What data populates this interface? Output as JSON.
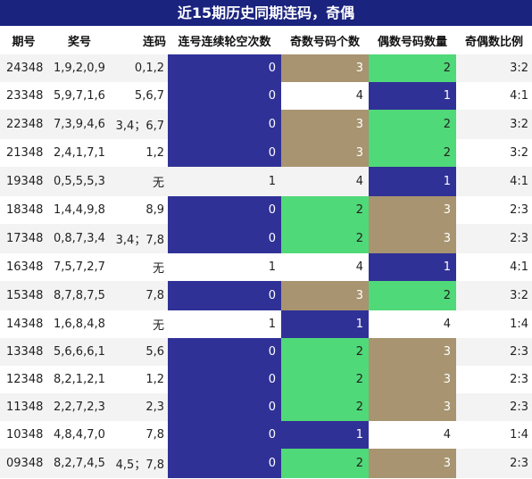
{
  "title": "近15期历史同期连码，奇偶",
  "headers": [
    "期号",
    "奖号",
    "连码",
    "连号连续轮空次数",
    "奇数号码个数",
    "偶数号码数量",
    "奇偶数比例"
  ],
  "colors": {
    "blue": "#303197",
    "tan": "#a89470",
    "green": "#50d978",
    "header": "#1a237e"
  },
  "rows": [
    {
      "period": "24348",
      "numbers": "1,9,2,0,9",
      "lian": "0,1,2",
      "miss": "0",
      "odd": "3",
      "even": "2",
      "ratio": "3:2",
      "c": [
        "blue",
        "tan",
        "green"
      ]
    },
    {
      "period": "23348",
      "numbers": "5,9,7,1,6",
      "lian": "5,6,7",
      "miss": "0",
      "odd": "4",
      "even": "1",
      "ratio": "4:1",
      "c": [
        "blue",
        "white",
        "blue"
      ]
    },
    {
      "period": "22348",
      "numbers": "7,3,9,4,6",
      "lian": "3,4；6,7",
      "miss": "0",
      "odd": "3",
      "even": "2",
      "ratio": "3:2",
      "c": [
        "blue",
        "tan",
        "green"
      ]
    },
    {
      "period": "21348",
      "numbers": "2,4,1,7,1",
      "lian": "1,2",
      "miss": "0",
      "odd": "3",
      "even": "2",
      "ratio": "3:2",
      "c": [
        "blue",
        "tan",
        "green"
      ]
    },
    {
      "period": "19348",
      "numbers": "0,5,5,5,3",
      "lian": "无",
      "miss": "1",
      "odd": "4",
      "even": "1",
      "ratio": "4:1",
      "c": [
        "white",
        "white",
        "blue"
      ]
    },
    {
      "period": "18348",
      "numbers": "1,4,4,9,8",
      "lian": "8,9",
      "miss": "0",
      "odd": "2",
      "even": "3",
      "ratio": "2:3",
      "c": [
        "blue",
        "green",
        "tan"
      ]
    },
    {
      "period": "17348",
      "numbers": "0,8,7,3,4",
      "lian": "3,4；7,8",
      "miss": "0",
      "odd": "2",
      "even": "3",
      "ratio": "2:3",
      "c": [
        "blue",
        "green",
        "tan"
      ]
    },
    {
      "period": "16348",
      "numbers": "7,5,7,2,7",
      "lian": "无",
      "miss": "1",
      "odd": "4",
      "even": "1",
      "ratio": "4:1",
      "c": [
        "white",
        "white",
        "blue"
      ]
    },
    {
      "period": "15348",
      "numbers": "8,7,8,7,5",
      "lian": "7,8",
      "miss": "0",
      "odd": "3",
      "even": "2",
      "ratio": "3:2",
      "c": [
        "blue",
        "tan",
        "green"
      ]
    },
    {
      "period": "14348",
      "numbers": "1,6,8,4,8",
      "lian": "无",
      "miss": "1",
      "odd": "1",
      "even": "4",
      "ratio": "1:4",
      "c": [
        "white",
        "blue",
        "white"
      ]
    },
    {
      "period": "13348",
      "numbers": "5,6,6,6,1",
      "lian": "5,6",
      "miss": "0",
      "odd": "2",
      "even": "3",
      "ratio": "2:3",
      "c": [
        "blue",
        "green",
        "tan"
      ]
    },
    {
      "period": "12348",
      "numbers": "8,2,1,2,1",
      "lian": "1,2",
      "miss": "0",
      "odd": "2",
      "even": "3",
      "ratio": "2:3",
      "c": [
        "blue",
        "green",
        "tan"
      ]
    },
    {
      "period": "11348",
      "numbers": "2,2,7,2,3",
      "lian": "2,3",
      "miss": "0",
      "odd": "2",
      "even": "3",
      "ratio": "2:3",
      "c": [
        "blue",
        "green",
        "tan"
      ]
    },
    {
      "period": "10348",
      "numbers": "4,8,4,7,0",
      "lian": "7,8",
      "miss": "0",
      "odd": "1",
      "even": "4",
      "ratio": "1:4",
      "c": [
        "blue",
        "blue",
        "white"
      ]
    },
    {
      "period": "09348",
      "numbers": "8,2,7,4,5",
      "lian": "4,5；7,8",
      "miss": "0",
      "odd": "2",
      "even": "3",
      "ratio": "2:3",
      "c": [
        "blue",
        "green",
        "tan"
      ]
    }
  ]
}
